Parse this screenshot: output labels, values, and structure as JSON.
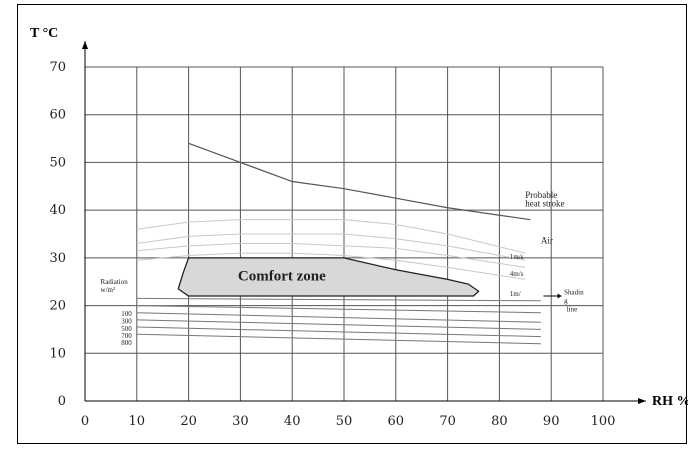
{
  "chart_data": {
    "type": "line",
    "title": "",
    "xlabel": "RH %",
    "ylabel": "T °C",
    "xlim": [
      0,
      100
    ],
    "ylim": [
      0,
      70
    ],
    "x_ticks": [
      "0",
      "10",
      "20",
      "30",
      "40",
      "50",
      "60",
      "70",
      "80",
      "90",
      "100"
    ],
    "y_ticks": [
      "0",
      "10",
      "20",
      "30",
      "40",
      "50",
      "60",
      "70"
    ],
    "grid": true,
    "series": [
      {
        "name": "Probable heat stroke",
        "color": "#555555",
        "points": [
          [
            20,
            54
          ],
          [
            30,
            50
          ],
          [
            40,
            46
          ],
          [
            50,
            44.5
          ],
          [
            60,
            42.5
          ],
          [
            70,
            40.5
          ],
          [
            86,
            38
          ]
        ]
      },
      {
        "name": "",
        "color": "#c8c8c8",
        "points": [
          [
            10,
            36
          ],
          [
            20,
            37.5
          ],
          [
            30,
            38
          ],
          [
            40,
            38
          ],
          [
            50,
            38
          ],
          [
            60,
            37
          ],
          [
            70,
            35
          ],
          [
            85,
            31
          ]
        ]
      },
      {
        "name": "",
        "color": "#c8c8c8",
        "points": [
          [
            10,
            33
          ],
          [
            20,
            34.5
          ],
          [
            30,
            35
          ],
          [
            40,
            35
          ],
          [
            50,
            35
          ],
          [
            60,
            34
          ],
          [
            70,
            32.5
          ],
          [
            85,
            29.5
          ]
        ]
      },
      {
        "name": "",
        "color": "#c8c8c8",
        "points": [
          [
            10,
            31.5
          ],
          [
            20,
            32.5
          ],
          [
            30,
            33
          ],
          [
            40,
            33
          ],
          [
            50,
            32.5
          ],
          [
            60,
            32
          ],
          [
            70,
            30.5
          ],
          [
            85,
            28
          ]
        ]
      },
      {
        "name": "",
        "color": "#c8c8c8",
        "points": [
          [
            10,
            29.5
          ],
          [
            20,
            30.5
          ],
          [
            30,
            31
          ],
          [
            40,
            31
          ],
          [
            50,
            30.5
          ],
          [
            60,
            29.5
          ],
          [
            70,
            28
          ],
          [
            85,
            25.5
          ]
        ]
      },
      {
        "name": "",
        "color": "#777777",
        "points": [
          [
            10,
            21.5
          ],
          [
            88,
            21
          ]
        ]
      },
      {
        "name": "",
        "color": "#777777",
        "points": [
          [
            10,
            20
          ],
          [
            88,
            18.5
          ]
        ]
      },
      {
        "name": "",
        "color": "#777777",
        "points": [
          [
            10,
            18.5
          ],
          [
            88,
            16.5
          ]
        ]
      },
      {
        "name": "",
        "color": "#777777",
        "points": [
          [
            10,
            17
          ],
          [
            88,
            15
          ]
        ]
      },
      {
        "name": "",
        "color": "#777777",
        "points": [
          [
            10,
            15.5
          ],
          [
            88,
            13.5
          ]
        ]
      },
      {
        "name": "",
        "color": "#777777",
        "points": [
          [
            10,
            14
          ],
          [
            88,
            12
          ]
        ]
      }
    ],
    "comfort_zone": {
      "label": "Comfort zone",
      "fill": "#d8d8d8",
      "outline": [
        [
          20,
          30
        ],
        [
          30,
          30
        ],
        [
          50,
          30
        ],
        [
          60,
          27.5
        ],
        [
          70,
          25.5
        ],
        [
          74,
          24.5
        ],
        [
          76,
          23
        ],
        [
          75,
          22
        ],
        [
          20,
          22
        ],
        [
          18,
          23.5
        ],
        [
          19,
          27
        ]
      ]
    },
    "annotations": [
      {
        "text": "Probable",
        "x": 85,
        "y": 42.5
      },
      {
        "text": "heat stroke",
        "x": 85,
        "y": 40.8
      },
      {
        "text": "Air",
        "x": 88,
        "y": 33
      },
      {
        "text": "1m/s",
        "x": 82,
        "y": 29.8
      },
      {
        "text": "4m/s",
        "x": 82,
        "y": 26.2
      },
      {
        "text": "1m/",
        "x": 82,
        "y": 22
      },
      {
        "text": "Shadin",
        "x": 92.5,
        "y": 22.3
      },
      {
        "text": "g",
        "x": 92.5,
        "y": 20.5
      },
      {
        "text": "line",
        "x": 93,
        "y": 18.8
      },
      {
        "text": "Radiation",
        "x": 3,
        "y": 24.5
      },
      {
        "text": "w/m²",
        "x": 3,
        "y": 22.8
      },
      {
        "text": "100",
        "x": 7,
        "y": 17.8
      },
      {
        "text": "300",
        "x": 7,
        "y": 16.2
      },
      {
        "text": "500",
        "x": 7,
        "y": 14.7
      },
      {
        "text": "700",
        "x": 7,
        "y": 13.2
      },
      {
        "text": "800",
        "x": 7,
        "y": 11.7
      }
    ]
  }
}
